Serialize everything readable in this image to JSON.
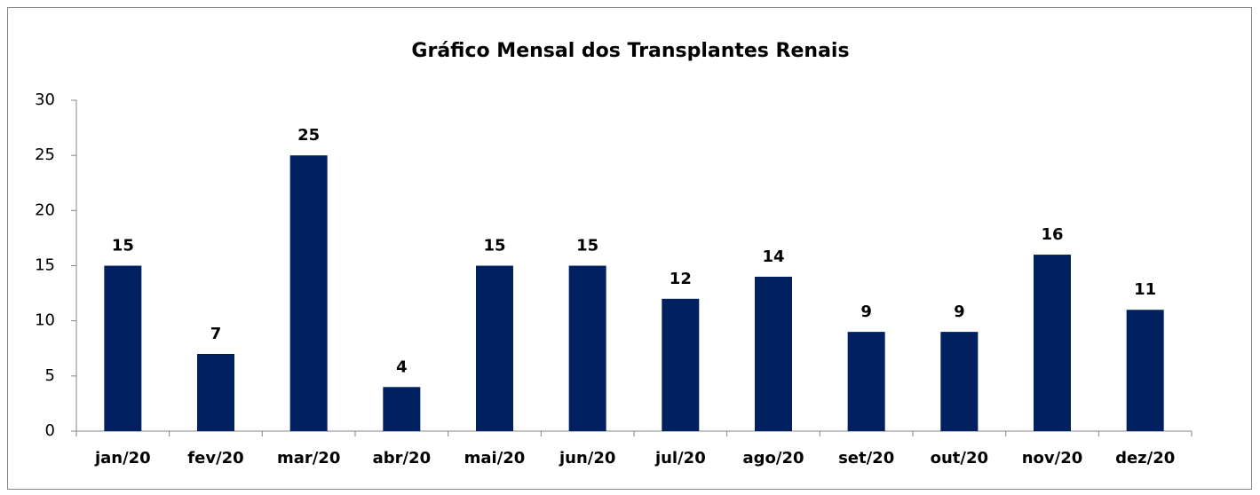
{
  "chart_data": {
    "type": "bar",
    "title": "Gráfico Mensal  dos Transplantes Renais",
    "categories": [
      "jan/20",
      "fev/20",
      "mar/20",
      "abr/20",
      "mai/20",
      "jun/20",
      "jul/20",
      "ago/20",
      "set/20",
      "out/20",
      "nov/20",
      "dez/20"
    ],
    "values": [
      15,
      7,
      25,
      4,
      15,
      15,
      12,
      14,
      9,
      9,
      16,
      11
    ],
    "color": "#002060",
    "ylim": [
      0,
      30
    ],
    "yticks": [
      0,
      5,
      10,
      15,
      20,
      25,
      30
    ],
    "grid": false
  }
}
